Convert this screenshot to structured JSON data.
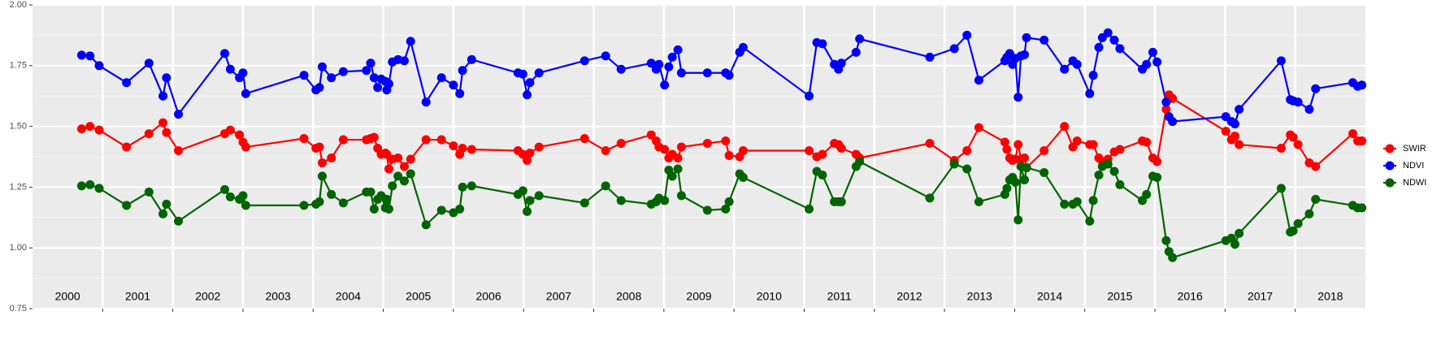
{
  "chart_data": {
    "type": "line",
    "x": [
      2000.7,
      2000.82,
      2000.95,
      2001.34,
      2001.66,
      2001.86,
      2001.91,
      2002.08,
      2002.74,
      2002.82,
      2002.95,
      2003.0,
      2003.04,
      2003.87,
      2004.04,
      2004.09,
      2004.13,
      2004.26,
      2004.43,
      2004.76,
      2004.82,
      2004.87,
      2004.92,
      2004.97,
      2005.03,
      2005.05,
      2005.08,
      2005.13,
      2005.21,
      2005.3,
      2005.39,
      2005.61,
      2005.83,
      2006.0,
      2006.09,
      2006.13,
      2006.26,
      2006.92,
      2006.99,
      2007.05,
      2007.09,
      2007.22,
      2007.87,
      2008.17,
      2008.39,
      2008.82,
      2008.89,
      2008.93,
      2009.01,
      2009.07,
      2009.12,
      2009.2,
      2009.25,
      2009.62,
      2009.88,
      2009.93,
      2010.08,
      2010.13,
      2011.07,
      2011.18,
      2011.26,
      2011.43,
      2011.49,
      2011.53,
      2011.74,
      2011.79,
      2012.79,
      2013.14,
      2013.32,
      2013.49,
      2013.86,
      2013.89,
      2013.93,
      2013.97,
      2014.01,
      2014.05,
      2014.09,
      2014.14,
      2014.17,
      2014.42,
      2014.71,
      2014.83,
      2014.89,
      2015.07,
      2015.12,
      2015.2,
      2015.25,
      2015.33,
      2015.42,
      2015.5,
      2015.82,
      2015.88,
      2015.97,
      2016.03,
      2016.16,
      2016.2,
      2016.25,
      2017.01,
      2017.09,
      2017.14,
      2017.2,
      2017.8,
      2017.93,
      2017.97,
      2018.04,
      2018.2,
      2018.29,
      2018.82,
      2018.89,
      2018.95
    ],
    "series": [
      {
        "name": "SWIR",
        "color": "#ff0000",
        "values": [
          1.49,
          1.5,
          1.485,
          1.415,
          1.47,
          1.515,
          1.475,
          1.4,
          1.47,
          1.485,
          1.465,
          1.435,
          1.415,
          1.45,
          1.41,
          1.415,
          1.35,
          1.37,
          1.445,
          1.445,
          1.45,
          1.455,
          1.41,
          1.385,
          1.39,
          1.385,
          1.325,
          1.365,
          1.37,
          1.335,
          1.365,
          1.445,
          1.445,
          1.42,
          1.385,
          1.41,
          1.405,
          1.4,
          1.385,
          1.36,
          1.39,
          1.415,
          1.45,
          1.4,
          1.43,
          1.465,
          1.44,
          1.415,
          1.405,
          1.37,
          1.385,
          1.37,
          1.415,
          1.43,
          1.44,
          1.38,
          1.375,
          1.4,
          1.4,
          1.375,
          1.385,
          1.43,
          1.425,
          1.41,
          1.385,
          1.37,
          1.43,
          1.36,
          1.4,
          1.495,
          1.435,
          1.405,
          1.37,
          1.36,
          1.365,
          1.425,
          1.365,
          1.37,
          1.33,
          1.4,
          1.5,
          1.415,
          1.44,
          1.425,
          1.425,
          1.37,
          1.355,
          1.365,
          1.395,
          1.405,
          1.44,
          1.435,
          1.37,
          1.355,
          1.57,
          1.63,
          1.615,
          1.48,
          1.445,
          1.46,
          1.425,
          1.41,
          1.465,
          1.455,
          1.425,
          1.35,
          1.335,
          1.47,
          1.44,
          1.44
        ]
      },
      {
        "name": "NDVI",
        "color": "#0000ff",
        "values": [
          1.793,
          1.79,
          1.75,
          1.68,
          1.76,
          1.625,
          1.7,
          1.55,
          1.8,
          1.735,
          1.7,
          1.72,
          1.635,
          1.71,
          1.65,
          1.66,
          1.745,
          1.7,
          1.725,
          1.73,
          1.76,
          1.7,
          1.66,
          1.695,
          1.685,
          1.65,
          1.675,
          1.765,
          1.775,
          1.77,
          1.85,
          1.6,
          1.7,
          1.67,
          1.635,
          1.73,
          1.775,
          1.72,
          1.715,
          1.63,
          1.68,
          1.72,
          1.77,
          1.79,
          1.735,
          1.76,
          1.735,
          1.755,
          1.67,
          1.745,
          1.785,
          1.815,
          1.72,
          1.72,
          1.72,
          1.71,
          1.805,
          1.825,
          1.625,
          1.845,
          1.84,
          1.755,
          1.735,
          1.76,
          1.805,
          1.86,
          1.785,
          1.82,
          1.875,
          1.69,
          1.77,
          1.785,
          1.8,
          1.755,
          1.78,
          1.62,
          1.79,
          1.795,
          1.865,
          1.855,
          1.735,
          1.77,
          1.755,
          1.635,
          1.71,
          1.825,
          1.865,
          1.885,
          1.855,
          1.82,
          1.735,
          1.755,
          1.805,
          1.765,
          1.6,
          1.54,
          1.52,
          1.54,
          1.52,
          1.51,
          1.57,
          1.77,
          1.61,
          1.605,
          1.6,
          1.57,
          1.655,
          1.68,
          1.665,
          1.67
        ]
      },
      {
        "name": "NDWI",
        "color": "#006400",
        "values": [
          1.255,
          1.26,
          1.245,
          1.175,
          1.23,
          1.14,
          1.18,
          1.11,
          1.24,
          1.21,
          1.2,
          1.215,
          1.175,
          1.175,
          1.18,
          1.19,
          1.295,
          1.22,
          1.185,
          1.23,
          1.23,
          1.16,
          1.2,
          1.215,
          1.165,
          1.2,
          1.16,
          1.255,
          1.295,
          1.275,
          1.305,
          1.095,
          1.155,
          1.145,
          1.16,
          1.25,
          1.255,
          1.22,
          1.235,
          1.15,
          1.195,
          1.215,
          1.185,
          1.255,
          1.195,
          1.18,
          1.19,
          1.205,
          1.195,
          1.32,
          1.295,
          1.325,
          1.215,
          1.155,
          1.16,
          1.19,
          1.305,
          1.29,
          1.16,
          1.315,
          1.3,
          1.19,
          1.19,
          1.19,
          1.335,
          1.355,
          1.205,
          1.345,
          1.325,
          1.19,
          1.22,
          1.245,
          1.28,
          1.29,
          1.27,
          1.115,
          1.335,
          1.28,
          1.33,
          1.31,
          1.18,
          1.18,
          1.19,
          1.11,
          1.195,
          1.3,
          1.335,
          1.345,
          1.315,
          1.26,
          1.195,
          1.22,
          1.295,
          1.29,
          1.03,
          0.985,
          0.96,
          1.03,
          1.04,
          1.015,
          1.06,
          1.245,
          1.065,
          1.07,
          1.1,
          1.14,
          1.2,
          1.175,
          1.165,
          1.165
        ]
      }
    ],
    "xlim": [
      2000,
      2019
    ],
    "xticks": [
      2001,
      2002,
      2003,
      2004,
      2005,
      2006,
      2007,
      2008,
      2009,
      2010,
      2011,
      2012,
      2013,
      2014,
      2015,
      2016,
      2017,
      2018
    ],
    "ylim": [
      0.75,
      2.0
    ],
    "yticks": [
      {
        "value": 0.75,
        "label": "0.75"
      },
      {
        "value": 1,
        "label": "1.00"
      },
      {
        "value": 1.25,
        "label": "1.25"
      },
      {
        "value": 1.5,
        "label": "1.50"
      },
      {
        "value": 1.75,
        "label": "1.75"
      },
      {
        "value": 2,
        "label": "2.00"
      }
    ],
    "year_labels": [
      {
        "x": 2000.5,
        "label": "2000"
      },
      {
        "x": 2001.5,
        "label": "2001"
      },
      {
        "x": 2002.5,
        "label": "2002"
      },
      {
        "x": 2003.5,
        "label": "2003"
      },
      {
        "x": 2004.5,
        "label": "2004"
      },
      {
        "x": 2005.5,
        "label": "2005"
      },
      {
        "x": 2006.5,
        "label": "2006"
      },
      {
        "x": 2007.5,
        "label": "2007"
      },
      {
        "x": 2008.5,
        "label": "2008"
      },
      {
        "x": 2009.5,
        "label": "2009"
      },
      {
        "x": 2010.5,
        "label": "2010"
      },
      {
        "x": 2011.5,
        "label": "2011"
      },
      {
        "x": 2012.5,
        "label": "2012"
      },
      {
        "x": 2013.5,
        "label": "2013"
      },
      {
        "x": 2014.5,
        "label": "2014"
      },
      {
        "x": 2015.5,
        "label": "2015"
      },
      {
        "x": 2016.5,
        "label": "2016"
      },
      {
        "x": 2017.5,
        "label": "2017"
      },
      {
        "x": 2018.5,
        "label": "2018"
      }
    ],
    "grid": true,
    "legend": "right"
  }
}
